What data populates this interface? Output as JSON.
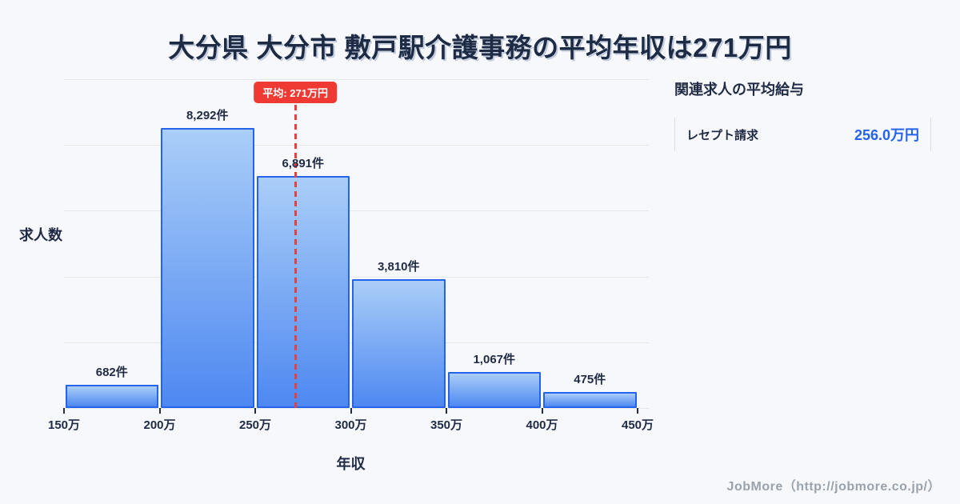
{
  "chart_data": {
    "type": "bar",
    "title": "大分県 大分市 敷戸駅介護事務の平均年収は271万円",
    "categories": [
      "150万-200万",
      "200万-250万",
      "250万-300万",
      "300万-350万",
      "350万-400万",
      "400万-450万"
    ],
    "values": [
      682,
      8292,
      6891,
      3810,
      1067,
      475
    ],
    "bar_labels": [
      "682件",
      "8,292件",
      "6,891件",
      "3,810件",
      "1,067件",
      "475件"
    ],
    "bin_edges": [
      150,
      200,
      250,
      300,
      350,
      400,
      450
    ],
    "x_tick_labels": [
      "150万",
      "200万",
      "250万",
      "300万",
      "350万",
      "400万",
      "450万"
    ],
    "xlabel": "年収",
    "ylabel": "求人数",
    "ylim": [
      0,
      10000
    ],
    "grid": true,
    "legend": false,
    "mean": {
      "value": 271,
      "label": "平均: 271万円"
    },
    "colors": {
      "bar_fill_top": "#aacef8",
      "bar_fill_bottom": "#4e88f1",
      "bar_border": "#2563eb",
      "mean_line": "#e8403c",
      "badge_bg": "#ee3a33",
      "value_text": "#2563eb",
      "title_text": "#1e2b45"
    }
  },
  "side_panel": {
    "heading": "関連求人の平均給与",
    "rows": [
      {
        "label": "レセプト請求",
        "value": "256.0万円"
      }
    ]
  },
  "footer": {
    "credit": "JobMore（http://jobmore.co.jp/）"
  }
}
